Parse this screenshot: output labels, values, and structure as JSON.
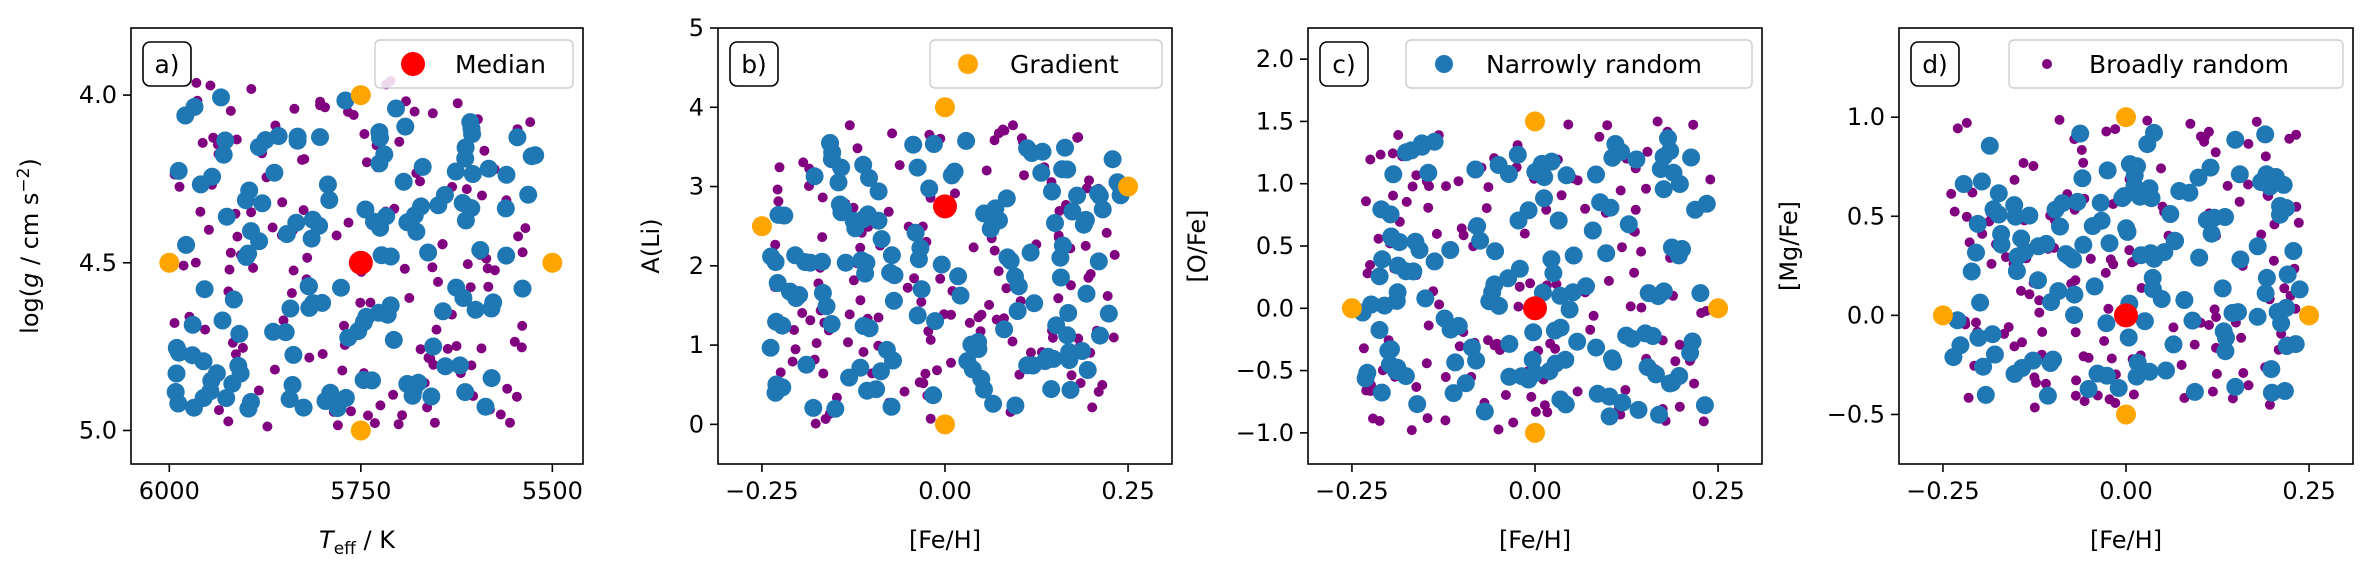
{
  "chart_data": [
    {
      "type": "scatter",
      "panel_label": "a)",
      "xlabel": "T_eff / K",
      "ylabel": "log(g / cm s^-2)",
      "xlim": [
        6050,
        5460
      ],
      "ylim": [
        5.1,
        3.8
      ],
      "xticks": [
        6000,
        5750,
        5500
      ],
      "yticks": [
        4.0,
        4.5,
        5.0
      ],
      "legend": "Median",
      "legend_position": "top-right",
      "highlight": {
        "Median": [
          [
            5750,
            4.5
          ]
        ],
        "Gradient": [
          [
            5750,
            4.0
          ],
          [
            5750,
            5.0
          ],
          [
            6000,
            4.5
          ],
          [
            5500,
            4.5
          ]
        ]
      }
    },
    {
      "type": "scatter",
      "panel_label": "b)",
      "xlabel": "[Fe/H]",
      "ylabel": "A(Li)",
      "xlim": [
        -0.31,
        0.31
      ],
      "ylim": [
        -0.5,
        5.0
      ],
      "xticks": [
        -0.25,
        0.0,
        0.25
      ],
      "yticks": [
        0,
        1,
        2,
        3,
        4,
        5
      ],
      "legend": "Gradient",
      "legend_position": "top-right",
      "highlight": {
        "Median": [
          [
            0.0,
            2.75
          ]
        ],
        "Gradient": [
          [
            0.0,
            4.0
          ],
          [
            0.0,
            0.0
          ],
          [
            -0.25,
            2.5
          ],
          [
            0.25,
            3.0
          ]
        ]
      }
    },
    {
      "type": "scatter",
      "panel_label": "c)",
      "xlabel": "[Fe/H]",
      "ylabel": "[O/Fe]",
      "xlim": [
        -0.31,
        0.31
      ],
      "ylim": [
        -1.25,
        2.25
      ],
      "xticks": [
        -0.25,
        0.0,
        0.25
      ],
      "yticks": [
        -1.0,
        -0.5,
        0.0,
        0.5,
        1.0,
        1.5,
        2.0
      ],
      "legend": "Narrowly random",
      "legend_position": "top-right",
      "highlight": {
        "Median": [
          [
            0.0,
            0.0
          ]
        ],
        "Gradient": [
          [
            0.0,
            1.5
          ],
          [
            0.0,
            -1.0
          ],
          [
            -0.25,
            0.0
          ],
          [
            0.25,
            0.0
          ]
        ]
      }
    },
    {
      "type": "scatter",
      "panel_label": "d)",
      "xlabel": "[Fe/H]",
      "ylabel": "[Mg/Fe]",
      "xlim": [
        -0.31,
        0.31
      ],
      "ylim": [
        -0.75,
        1.45
      ],
      "xticks": [
        -0.25,
        0.0,
        0.25
      ],
      "yticks": [
        -0.5,
        0.0,
        0.5,
        1.0
      ],
      "legend": "Broadly random",
      "legend_position": "top-right",
      "highlight": {
        "Median": [
          [
            0.0,
            0.0
          ]
        ],
        "Gradient": [
          [
            0.0,
            1.0
          ],
          [
            0.0,
            -0.5
          ],
          [
            -0.25,
            0.0
          ],
          [
            0.25,
            0.0
          ]
        ]
      }
    }
  ],
  "colors": {
    "median": "#ff0000",
    "gradient": "#ffa500",
    "narrow": "#1f77b4",
    "broad": "#800080"
  }
}
